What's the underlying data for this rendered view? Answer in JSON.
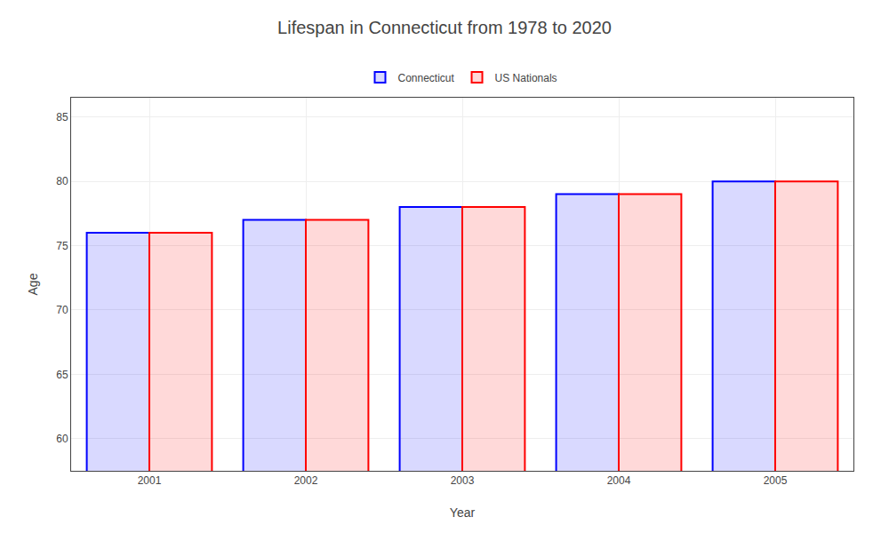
{
  "chart_data": {
    "type": "bar",
    "title": "Lifespan in Connecticut from 1978 to 2020",
    "x_label": "Year",
    "y_label": "Age",
    "categories": [
      "2001",
      "2002",
      "2003",
      "2004",
      "2005"
    ],
    "series": [
      {
        "name": "Connecticut",
        "color": "#0000ff",
        "values": [
          76,
          77,
          78,
          79,
          80
        ]
      },
      {
        "name": "US Nationals",
        "color": "#ff0000",
        "values": [
          76,
          77,
          78,
          79,
          80
        ]
      }
    ],
    "ylim": [
      57.5,
      86.5
    ],
    "yticks": [
      60,
      65,
      70,
      75,
      80,
      85
    ],
    "grid": true,
    "legend": "top"
  }
}
